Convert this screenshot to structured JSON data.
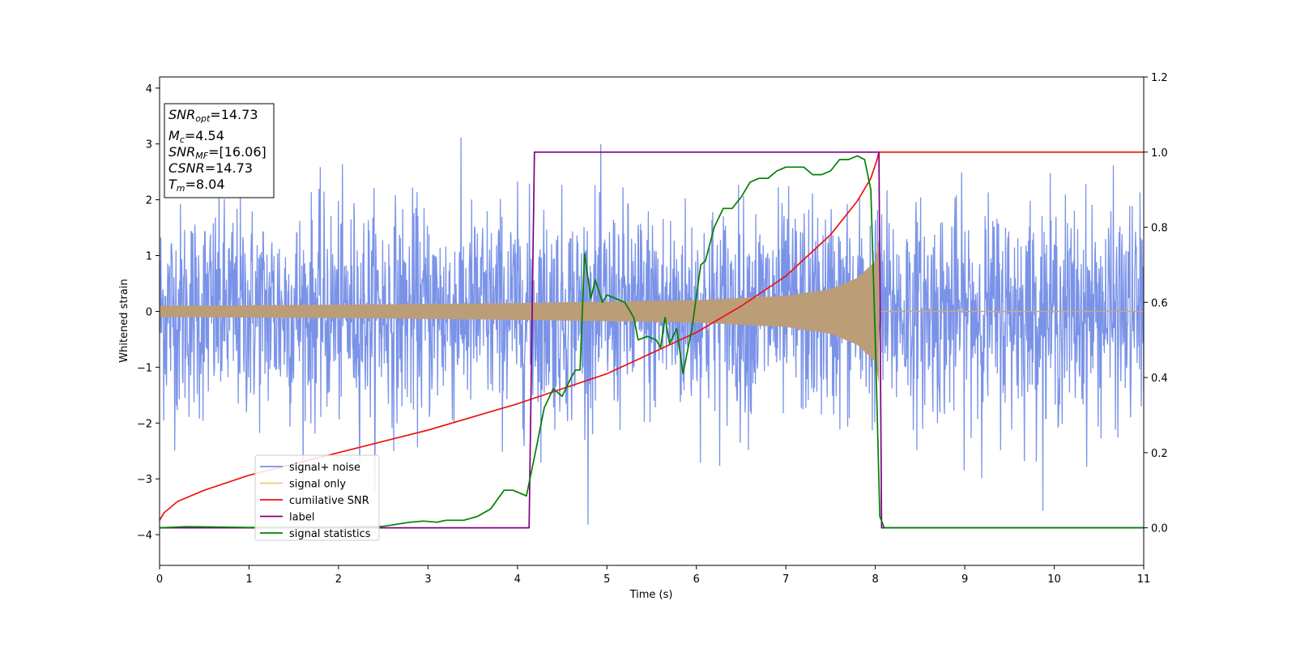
{
  "chart_data": {
    "type": "line",
    "xlabel": "Time (s)",
    "ylabel_left": "Whitened strain",
    "ylabel_right": "",
    "xlim": [
      0,
      11
    ],
    "ylim_left": [
      -4.55,
      4.2
    ],
    "ylim_right": [
      -0.1,
      1.2
    ],
    "x_ticks": [
      "0",
      "1",
      "2",
      "3",
      "4",
      "5",
      "6",
      "7",
      "8",
      "9",
      "10",
      "11"
    ],
    "y_left_ticks": [
      "−4",
      "−3",
      "−2",
      "−1",
      "0",
      "1",
      "2",
      "3",
      "4"
    ],
    "y_left_tick_values": [
      -4,
      -3,
      -2,
      -1,
      0,
      1,
      2,
      3,
      4
    ],
    "y_right_ticks": [
      "0.0",
      "0.2",
      "0.4",
      "0.6",
      "0.8",
      "1.0",
      "1.2"
    ],
    "y_right_tick_values": [
      0,
      0.2,
      0.4,
      0.6,
      0.8,
      1.0,
      1.2
    ],
    "grid": false,
    "legend_position": "lower-left",
    "info_box": {
      "lines": [
        {
          "main": "SNR",
          "sub": "opt",
          "value": "=14.73"
        },
        {
          "main": "M",
          "sub": "c",
          "value": "=4.54"
        },
        {
          "main": "SNR",
          "sub": "MF",
          "value": "=[16.06]"
        },
        {
          "main": "CSNR",
          "sub": "",
          "value": "=14.73"
        },
        {
          "main": "T",
          "sub": "m",
          "value": "=8.04"
        }
      ]
    },
    "series": [
      {
        "name": "signal+ noise",
        "axis": "left",
        "color": "#7a93e8",
        "noise_sigma": 0.95,
        "range": [
          -4.15,
          3.8
        ]
      },
      {
        "name": "signal only",
        "axis": "left",
        "color": "#f5c77e",
        "merger_time": 8.04,
        "envelope": {
          "x": [
            0,
            2,
            4,
            6,
            7,
            7.5,
            7.8,
            8.0,
            8.04
          ],
          "amp": [
            0.1,
            0.12,
            0.15,
            0.2,
            0.28,
            0.4,
            0.6,
            0.9,
            1.3
          ]
        }
      },
      {
        "name": "cumilative SNR",
        "axis": "right",
        "color": "#ee1111",
        "x": [
          0,
          0.05,
          0.2,
          0.5,
          1,
          2,
          3,
          4,
          5,
          6,
          6.5,
          7,
          7.5,
          7.8,
          7.95,
          8.02,
          8.04,
          8.06,
          11
        ],
        "y": [
          0.02,
          0.04,
          0.07,
          0.1,
          0.14,
          0.2,
          0.26,
          0.33,
          0.41,
          0.52,
          0.59,
          0.67,
          0.78,
          0.87,
          0.93,
          0.98,
          1.0,
          1.0,
          1.0
        ]
      },
      {
        "name": "label",
        "axis": "right",
        "color": "#800080",
        "x": [
          0,
          4.13,
          4.19,
          8.04,
          8.07,
          11
        ],
        "y": [
          0,
          0,
          1.0,
          1.0,
          0,
          0
        ]
      },
      {
        "name": "signal statistics",
        "axis": "right",
        "color": "#008000",
        "x": [
          0,
          0.3,
          1,
          2,
          2.5,
          2.8,
          2.95,
          3.1,
          3.2,
          3.4,
          3.55,
          3.7,
          3.85,
          3.95,
          4.1,
          4.2,
          4.3,
          4.4,
          4.5,
          4.6,
          4.65,
          4.7,
          4.75,
          4.82,
          4.87,
          4.95,
          5.0,
          5.1,
          5.2,
          5.3,
          5.35,
          5.45,
          5.55,
          5.6,
          5.65,
          5.7,
          5.78,
          5.85,
          5.9,
          5.95,
          6.05,
          6.1,
          6.2,
          6.3,
          6.4,
          6.5,
          6.6,
          6.7,
          6.8,
          6.9,
          7.0,
          7.1,
          7.2,
          7.3,
          7.4,
          7.5,
          7.6,
          7.7,
          7.8,
          7.88,
          7.95,
          8.0,
          8.05,
          8.1,
          8.2,
          11
        ],
        "y": [
          0.0,
          0.003,
          0.001,
          0.002,
          0.004,
          0.015,
          0.018,
          0.015,
          0.02,
          0.02,
          0.03,
          0.05,
          0.1,
          0.1,
          0.085,
          0.2,
          0.32,
          0.37,
          0.35,
          0.4,
          0.42,
          0.42,
          0.73,
          0.61,
          0.66,
          0.6,
          0.62,
          0.61,
          0.6,
          0.56,
          0.5,
          0.51,
          0.5,
          0.48,
          0.56,
          0.49,
          0.53,
          0.41,
          0.47,
          0.53,
          0.7,
          0.71,
          0.8,
          0.85,
          0.85,
          0.88,
          0.92,
          0.93,
          0.93,
          0.95,
          0.96,
          0.96,
          0.96,
          0.94,
          0.94,
          0.95,
          0.98,
          0.98,
          0.99,
          0.98,
          0.9,
          0.5,
          0.03,
          0.0,
          0.0,
          0.0
        ]
      }
    ]
  }
}
